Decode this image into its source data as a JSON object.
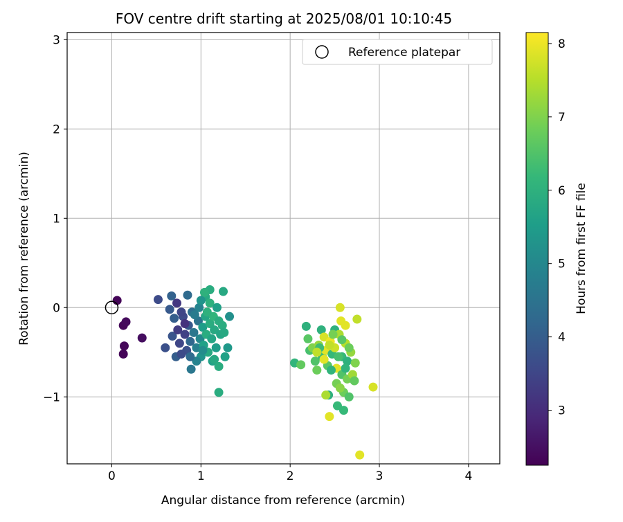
{
  "chart_data": {
    "type": "scatter",
    "title": "FOV centre drift starting at 2025/08/01 10:10:45",
    "xlabel": "Angular distance from reference (arcmin)",
    "ylabel": "Rotation from reference (arcmin)",
    "xlim": [
      -0.5,
      4.35
    ],
    "ylim": [
      -1.75,
      3.08
    ],
    "xticks": [
      0,
      1,
      2,
      3,
      4
    ],
    "xtick_labels": [
      "0",
      "1",
      "2",
      "3",
      "4"
    ],
    "yticks": [
      -1,
      0,
      1,
      2,
      3
    ],
    "ytick_labels": [
      "−1",
      "0",
      "1",
      "2",
      "3"
    ],
    "grid": true,
    "legend_position": "top-right",
    "reference": {
      "name": "Reference platepar",
      "x": 0,
      "y": 0,
      "marker": "open circle",
      "color": "#000000"
    },
    "colorbar": {
      "label": "Hours from first FF file",
      "min": 2.25,
      "max": 8.15,
      "ticks": [
        3,
        4,
        5,
        6,
        7,
        8
      ],
      "tick_labels": [
        "3",
        "4",
        "5",
        "6",
        "7",
        "8"
      ],
      "colormap": "viridis",
      "colormap_stops": [
        "#440154",
        "#482878",
        "#3e4989",
        "#31688e",
        "#26828e",
        "#1f9e89",
        "#35b779",
        "#6ece58",
        "#b5de2b",
        "#fde725"
      ]
    },
    "series": [
      {
        "points": [
          [
            0.06,
            0.08,
            2.3
          ],
          [
            0.13,
            -0.2,
            2.35
          ],
          [
            0.16,
            -0.16,
            2.4
          ],
          [
            0.14,
            -0.43,
            2.35
          ],
          [
            0.13,
            -0.52,
            2.3
          ],
          [
            0.34,
            -0.34,
            2.45
          ],
          [
            0.52,
            0.09,
            3.6
          ],
          [
            0.6,
            -0.45,
            3.7
          ],
          [
            0.67,
            0.13,
            4.1
          ],
          [
            0.73,
            0.05,
            3.2
          ],
          [
            0.85,
            0.14,
            4.3
          ],
          [
            0.89,
            -0.69,
            4.6
          ],
          [
            1.2,
            -0.95,
            5.9
          ],
          [
            0.65,
            -0.02,
            3.9
          ],
          [
            0.7,
            -0.12,
            4.0
          ],
          [
            0.68,
            -0.32,
            3.8
          ],
          [
            0.74,
            -0.25,
            3.3
          ],
          [
            0.76,
            -0.4,
            3.5
          ],
          [
            0.72,
            -0.55,
            4.0
          ],
          [
            0.8,
            -0.1,
            3.6
          ],
          [
            0.82,
            -0.3,
            3.4
          ],
          [
            0.84,
            -0.48,
            3.7
          ],
          [
            0.86,
            -0.2,
            3.9
          ],
          [
            0.88,
            -0.38,
            4.2
          ],
          [
            0.9,
            -0.05,
            4.4
          ],
          [
            0.92,
            -0.28,
            4.6
          ],
          [
            0.95,
            -0.45,
            4.8
          ],
          [
            0.97,
            -0.15,
            4.5
          ],
          [
            0.99,
            -0.35,
            5.0
          ],
          [
            0.98,
            0.0,
            4.9
          ],
          [
            1.0,
            -0.55,
            5.3
          ],
          [
            1.02,
            -0.22,
            5.5
          ],
          [
            1.03,
            -0.42,
            5.6
          ],
          [
            1.05,
            0.12,
            5.8
          ],
          [
            1.05,
            -0.1,
            5.7
          ],
          [
            1.06,
            -0.3,
            5.9
          ],
          [
            1.08,
            -0.5,
            5.8
          ],
          [
            1.1,
            0.05,
            6.0
          ],
          [
            1.1,
            -0.18,
            5.9
          ],
          [
            1.12,
            -0.35,
            5.7
          ],
          [
            1.13,
            -0.6,
            5.6
          ],
          [
            1.14,
            -0.1,
            6.1
          ],
          [
            1.15,
            -0.25,
            5.8
          ],
          [
            1.17,
            -0.45,
            5.5
          ],
          [
            1.18,
            0.0,
            5.6
          ],
          [
            1.2,
            -0.15,
            5.9
          ],
          [
            1.22,
            -0.3,
            5.7
          ],
          [
            1.24,
            -0.2,
            5.9
          ],
          [
            1.26,
            -0.28,
            5.8
          ],
          [
            1.27,
            -0.55,
            5.6
          ],
          [
            1.3,
            -0.45,
            5.4
          ],
          [
            1.32,
            -0.1,
            5.2
          ],
          [
            1.25,
            0.18,
            5.8
          ],
          [
            1.1,
            0.2,
            5.9
          ],
          [
            1.04,
            0.17,
            6.0
          ],
          [
            0.78,
            -0.52,
            3.6
          ],
          [
            0.82,
            -0.18,
            3.1
          ],
          [
            0.93,
            -0.08,
            4.7
          ],
          [
            1.0,
            0.08,
            5.3
          ],
          [
            1.07,
            -0.05,
            6.0
          ],
          [
            1.15,
            -0.58,
            5.8
          ],
          [
            1.2,
            -0.66,
            5.9
          ],
          [
            0.95,
            -0.6,
            4.9
          ],
          [
            0.78,
            -0.05,
            3.5
          ],
          [
            0.88,
            -0.55,
            4.3
          ],
          [
            1.02,
            -0.48,
            5.1
          ],
          [
            2.05,
            -0.62,
            6.1
          ],
          [
            2.12,
            -0.64,
            6.7
          ],
          [
            2.18,
            -0.21,
            6.0
          ],
          [
            2.2,
            -0.35,
            6.6
          ],
          [
            2.22,
            -0.48,
            6.4
          ],
          [
            2.25,
            -0.45,
            7.0
          ],
          [
            2.28,
            -0.6,
            6.5
          ],
          [
            2.3,
            -0.7,
            6.8
          ],
          [
            2.32,
            -0.42,
            7.2
          ],
          [
            2.35,
            -0.25,
            6.0
          ],
          [
            2.36,
            -0.55,
            6.3
          ],
          [
            2.38,
            -0.33,
            7.8
          ],
          [
            2.4,
            -0.48,
            7.9
          ],
          [
            2.42,
            -0.65,
            6.6
          ],
          [
            2.43,
            -0.98,
            6.0
          ],
          [
            2.44,
            -1.22,
            7.9
          ],
          [
            2.45,
            -0.38,
            8.0
          ],
          [
            2.47,
            -0.52,
            6.2
          ],
          [
            2.5,
            -0.25,
            6.0
          ],
          [
            2.5,
            -0.45,
            7.7
          ],
          [
            2.52,
            -0.68,
            7.9
          ],
          [
            2.52,
            -0.85,
            6.9
          ],
          [
            2.53,
            -1.1,
            6.2
          ],
          [
            2.55,
            -0.3,
            7.4
          ],
          [
            2.56,
            0.0,
            7.8
          ],
          [
            2.57,
            -0.15,
            7.9
          ],
          [
            2.58,
            -0.55,
            6.2
          ],
          [
            2.58,
            -0.75,
            6.5
          ],
          [
            2.6,
            -0.95,
            6.8
          ],
          [
            2.6,
            -1.15,
            6.2
          ],
          [
            2.62,
            -0.2,
            7.9
          ],
          [
            2.62,
            -0.4,
            7.5
          ],
          [
            2.64,
            -0.6,
            6.0
          ],
          [
            2.64,
            -0.8,
            6.9
          ],
          [
            2.66,
            -1.0,
            6.5
          ],
          [
            2.68,
            -0.5,
            7.2
          ],
          [
            2.7,
            -0.75,
            7.3
          ],
          [
            2.72,
            -0.82,
            6.7
          ],
          [
            2.73,
            -0.62,
            7.0
          ],
          [
            2.75,
            -0.13,
            7.6
          ],
          [
            2.78,
            -1.65,
            7.9
          ],
          [
            2.93,
            -0.89,
            7.8
          ],
          [
            2.38,
            -0.58,
            7.9
          ],
          [
            2.33,
            -0.45,
            6.3
          ],
          [
            2.46,
            -0.7,
            6.1
          ],
          [
            2.54,
            -0.55,
            6.4
          ],
          [
            2.48,
            -0.3,
            6.9
          ],
          [
            2.56,
            -0.9,
            7.1
          ],
          [
            2.44,
            -0.42,
            7.6
          ],
          [
            2.62,
            -0.68,
            6.1
          ],
          [
            2.66,
            -0.45,
            6.8
          ],
          [
            2.4,
            -0.98,
            7.4
          ],
          [
            2.3,
            -0.5,
            7.6
          ],
          [
            2.58,
            -0.36,
            6.6
          ]
        ]
      }
    ]
  }
}
